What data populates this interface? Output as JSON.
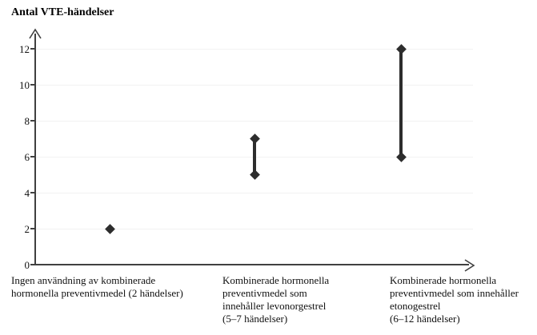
{
  "chart_data": {
    "type": "scatter",
    "subtype": "point-range",
    "title": "Antal VTE-händelser",
    "ylabel": "Antal VTE-händelser",
    "xlabel": "",
    "ylim": [
      0,
      12
    ],
    "yticks": [
      0,
      2,
      4,
      6,
      8,
      10,
      12
    ],
    "grid": true,
    "legend": "none",
    "marker": "diamond",
    "categories": [
      {
        "label": "Ingen användning av kombinerade hormonella preventivmedel (2 händelser)",
        "label_lines": [
          "Ingen användning av kombinerade",
          "hormonella preventivmedel (2 händelser)"
        ],
        "range": [
          2,
          2
        ]
      },
      {
        "label": "Kombinerade hormonella preventivmedel som innehåller levonorgestrel (5–7 händelser)",
        "label_lines": [
          "Kombinerade hormonella",
          "preventivmedel som",
          "innehåller levonorgestrel",
          "(5–7 händelser)"
        ],
        "range": [
          5,
          7
        ]
      },
      {
        "label": "Kombinerade hormonella preventivmedel som innehåller etonogestrel (6–12 händelser)",
        "label_lines": [
          "Kombinerade hormonella",
          "preventivmedel som innehåller",
          "etonogestrel",
          "(6–12 händelser)"
        ],
        "range": [
          6,
          12
        ]
      }
    ],
    "colors": {
      "marker": "#2d2d2d",
      "axis": "#404040",
      "gridline": "#f2f2f2",
      "text": "#111111"
    }
  }
}
